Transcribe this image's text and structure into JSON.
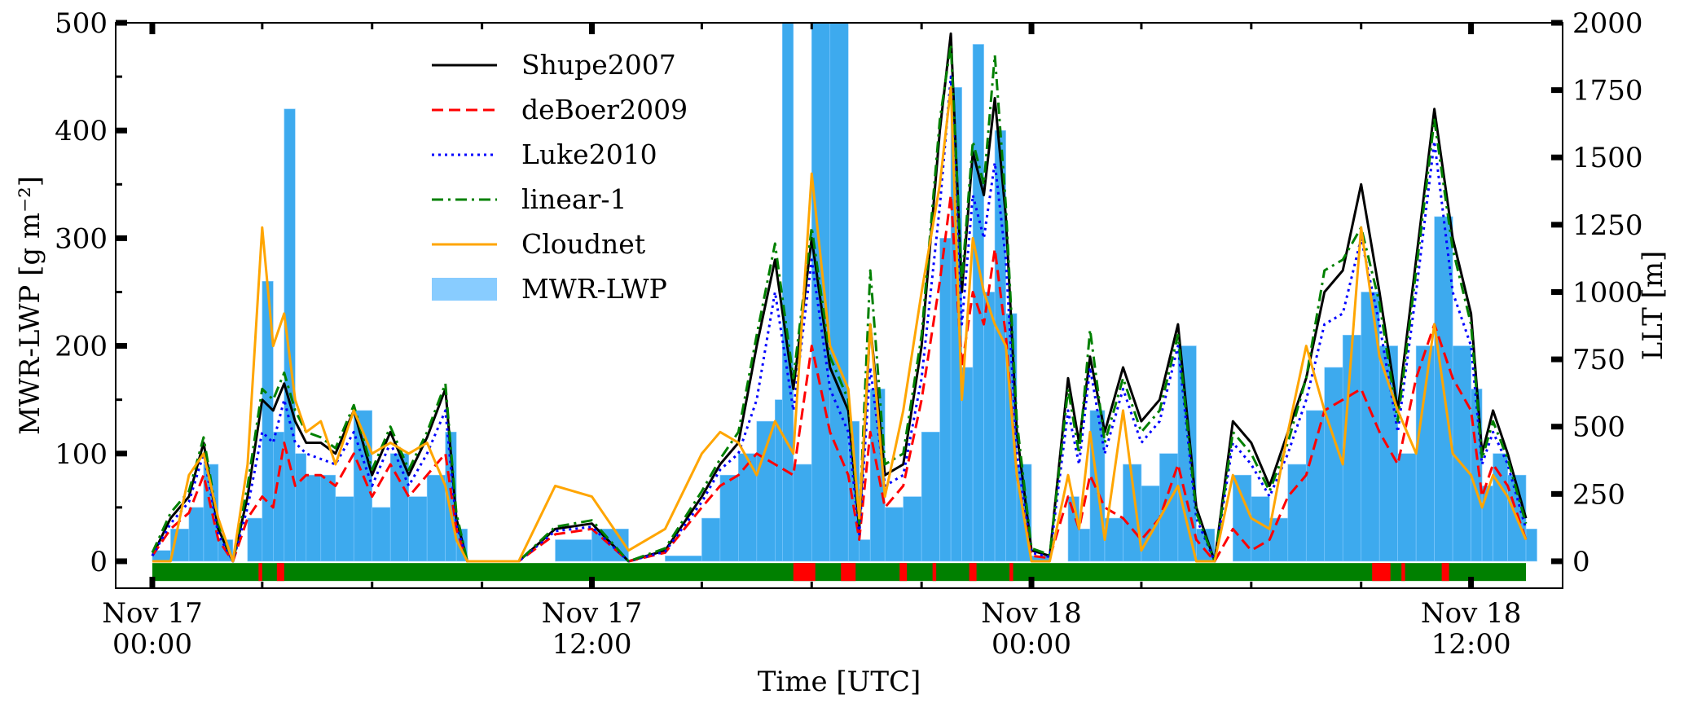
{
  "chart_data": {
    "type": "line",
    "title": "",
    "xlabel": "Time [UTC]",
    "ylabel": "MWR-LWP [g m⁻²]",
    "ylabel_right": "LLT [m]",
    "x_unit": "hours since Nov 17 00:00 UTC",
    "xlim": [
      -1.0,
      38.5
    ],
    "ylim": [
      -25,
      500
    ],
    "ylim_right": [
      -100,
      2000
    ],
    "x_ticks": [
      {
        "x": 0,
        "line1": "Nov 17",
        "line2": "00:00"
      },
      {
        "x": 12,
        "line1": "Nov 17",
        "line2": "12:00"
      },
      {
        "x": 24,
        "line1": "Nov 18",
        "line2": "00:00"
      },
      {
        "x": 36,
        "line1": "Nov 18",
        "line2": "12:00"
      }
    ],
    "y_ticks": [
      "0",
      "100",
      "200",
      "300",
      "400",
      "500"
    ],
    "y_tick_values": [
      0,
      100,
      200,
      300,
      400,
      500
    ],
    "y_right_ticks": [
      "0",
      "250",
      "500",
      "750",
      "1000",
      "1250",
      "1500",
      "1750",
      "2000"
    ],
    "y_right_tick_values": [
      0,
      250,
      500,
      750,
      1000,
      1250,
      1500,
      1750,
      2000
    ],
    "legend_position": "top-left",
    "grid": false,
    "series": [
      {
        "name": "Shupe2007",
        "color": "#000000",
        "style": "solid",
        "x": [
          0,
          0.5,
          1.0,
          1.4,
          1.8,
          2.2,
          2.6,
          3.0,
          3.3,
          3.6,
          3.9,
          4.2,
          4.6,
          5.0,
          5.5,
          6.0,
          6.5,
          7.0,
          7.5,
          8.0,
          8.3,
          8.6,
          9.0,
          9.5,
          10,
          11,
          12,
          13,
          14,
          15,
          15.5,
          16,
          16.5,
          17,
          17.5,
          18,
          18.5,
          19,
          19.3,
          19.6,
          20,
          20.5,
          21,
          21.5,
          21.8,
          22.1,
          22.4,
          22.7,
          23,
          23.3,
          23.6,
          24,
          24.5,
          25,
          25.3,
          25.6,
          26,
          26.5,
          27,
          27.5,
          28,
          28.5,
          29,
          29.5,
          30,
          30.5,
          31,
          31.5,
          32,
          32.5,
          33,
          33.5,
          34,
          34.5,
          35,
          35.5,
          36,
          36.3,
          36.6,
          37,
          37.5
        ],
        "values": [
          5,
          40,
          60,
          110,
          30,
          0,
          60,
          150,
          140,
          165,
          130,
          110,
          110,
          100,
          140,
          80,
          120,
          80,
          115,
          160,
          40,
          0,
          0,
          0,
          0,
          30,
          35,
          0,
          10,
          60,
          90,
          110,
          200,
          280,
          160,
          300,
          180,
          140,
          30,
          220,
          80,
          90,
          200,
          400,
          490,
          250,
          380,
          340,
          430,
          320,
          120,
          10,
          5,
          170,
          110,
          190,
          120,
          180,
          130,
          150,
          220,
          50,
          0,
          130,
          110,
          70,
          120,
          170,
          250,
          270,
          350,
          250,
          140,
          280,
          420,
          300,
          230,
          100,
          140,
          100,
          40
        ]
      },
      {
        "name": "deBoer2009",
        "color": "#ff0000",
        "style": "dashed",
        "x": [
          0,
          0.5,
          1.0,
          1.4,
          1.8,
          2.2,
          2.6,
          3.0,
          3.3,
          3.6,
          3.9,
          4.2,
          4.6,
          5.0,
          5.5,
          6.0,
          6.5,
          7.0,
          7.5,
          8.0,
          8.3,
          8.6,
          9.0,
          9.5,
          10,
          11,
          12,
          13,
          14,
          15,
          15.5,
          16,
          16.5,
          17,
          17.5,
          18,
          18.5,
          19,
          19.3,
          19.6,
          20,
          20.5,
          21,
          21.5,
          21.8,
          22.1,
          22.4,
          22.7,
          23,
          23.3,
          23.6,
          24,
          24.5,
          25,
          25.3,
          25.6,
          26,
          26.5,
          27,
          27.5,
          28,
          28.5,
          29,
          29.5,
          30,
          30.5,
          31,
          31.5,
          32,
          32.5,
          33,
          33.5,
          34,
          34.5,
          35,
          35.5,
          36,
          36.3,
          36.6,
          37,
          37.5
        ],
        "values": [
          5,
          30,
          45,
          80,
          20,
          0,
          40,
          60,
          50,
          110,
          70,
          80,
          80,
          70,
          100,
          60,
          90,
          60,
          80,
          100,
          30,
          0,
          0,
          0,
          0,
          25,
          30,
          0,
          8,
          50,
          70,
          80,
          100,
          90,
          80,
          200,
          120,
          80,
          20,
          120,
          50,
          70,
          150,
          260,
          340,
          180,
          250,
          220,
          290,
          210,
          80,
          5,
          3,
          60,
          30,
          80,
          50,
          40,
          20,
          40,
          90,
          20,
          0,
          30,
          10,
          20,
          60,
          80,
          140,
          150,
          160,
          120,
          90,
          170,
          220,
          170,
          140,
          60,
          90,
          70,
          20
        ]
      },
      {
        "name": "Luke2010",
        "color": "#0000ff",
        "style": "dotted",
        "x": [
          0,
          0.5,
          1.0,
          1.4,
          1.8,
          2.2,
          2.6,
          3.0,
          3.3,
          3.6,
          3.9,
          4.2,
          4.6,
          5.0,
          5.5,
          6.0,
          6.5,
          7.0,
          7.5,
          8.0,
          8.3,
          8.6,
          9.0,
          9.5,
          10,
          11,
          12,
          13,
          14,
          15,
          15.5,
          16,
          16.5,
          17,
          17.5,
          18,
          18.5,
          19,
          19.3,
          19.6,
          20,
          20.5,
          21,
          21.5,
          21.8,
          22.1,
          22.4,
          22.7,
          23,
          23.3,
          23.6,
          24,
          24.5,
          25,
          25.3,
          25.6,
          26,
          26.5,
          27,
          27.5,
          28,
          28.5,
          29,
          29.5,
          30,
          30.5,
          31,
          31.5,
          32,
          32.5,
          33,
          33.5,
          34,
          34.5,
          35,
          35.5,
          36,
          36.3,
          36.6,
          37,
          37.5
        ],
        "values": [
          5,
          35,
          55,
          100,
          25,
          0,
          50,
          120,
          110,
          150,
          110,
          100,
          95,
          90,
          120,
          70,
          110,
          70,
          100,
          140,
          35,
          0,
          0,
          0,
          0,
          28,
          32,
          0,
          9,
          55,
          85,
          100,
          150,
          250,
          140,
          280,
          160,
          120,
          25,
          180,
          70,
          80,
          170,
          330,
          450,
          220,
          340,
          300,
          370,
          280,
          100,
          8,
          4,
          140,
          90,
          180,
          100,
          160,
          110,
          130,
          200,
          40,
          0,
          110,
          90,
          60,
          100,
          150,
          220,
          230,
          300,
          220,
          120,
          250,
          390,
          250,
          200,
          90,
          120,
          90,
          30
        ]
      },
      {
        "name": "linear-1",
        "color": "#008000",
        "style": "dashdot",
        "x": [
          0,
          0.5,
          1.0,
          1.4,
          1.8,
          2.2,
          2.6,
          3.0,
          3.3,
          3.6,
          3.9,
          4.2,
          4.6,
          5.0,
          5.5,
          6.0,
          6.5,
          7.0,
          7.5,
          8.0,
          8.3,
          8.6,
          9.0,
          9.5,
          10,
          11,
          12,
          13,
          14,
          15,
          15.5,
          16,
          16.5,
          17,
          17.5,
          18,
          18.5,
          19,
          19.3,
          19.6,
          20,
          20.5,
          21,
          21.5,
          21.8,
          22.1,
          22.4,
          22.7,
          23,
          23.3,
          23.6,
          24,
          24.5,
          25,
          25.3,
          25.6,
          26,
          26.5,
          27,
          27.5,
          28,
          28.5,
          29,
          29.5,
          30,
          30.5,
          31,
          31.5,
          32,
          32.5,
          33,
          33.5,
          34,
          34.5,
          35,
          35.5,
          36,
          36.3,
          36.6,
          37,
          37.5
        ],
        "values": [
          8,
          45,
          65,
          115,
          35,
          0,
          70,
          160,
          150,
          175,
          140,
          120,
          115,
          105,
          145,
          85,
          125,
          85,
          120,
          165,
          45,
          0,
          0,
          0,
          0,
          32,
          38,
          0,
          12,
          65,
          95,
          120,
          210,
          295,
          170,
          310,
          190,
          150,
          35,
          270,
          90,
          100,
          210,
          410,
          480,
          260,
          390,
          350,
          470,
          330,
          130,
          12,
          6,
          160,
          100,
          215,
          110,
          170,
          120,
          140,
          210,
          45,
          0,
          120,
          100,
          65,
          110,
          170,
          270,
          280,
          310,
          240,
          130,
          270,
          410,
          290,
          220,
          95,
          130,
          95,
          35
        ]
      },
      {
        "name": "Cloudnet",
        "color": "#ffa500",
        "style": "solid",
        "x": [
          0,
          0.5,
          1.0,
          1.4,
          1.8,
          2.2,
          2.6,
          3.0,
          3.3,
          3.6,
          3.9,
          4.2,
          4.6,
          5.0,
          5.5,
          6.0,
          6.5,
          7.0,
          7.5,
          8.0,
          8.3,
          8.6,
          9.0,
          9.5,
          10,
          11,
          12,
          13,
          14,
          15,
          15.5,
          16,
          16.5,
          17,
          17.5,
          18,
          18.5,
          19,
          19.3,
          19.6,
          20,
          20.5,
          21,
          21.5,
          21.8,
          22.1,
          22.4,
          22.7,
          23,
          23.3,
          23.6,
          24,
          24.5,
          25,
          25.3,
          25.6,
          26,
          26.5,
          27,
          27.5,
          28,
          28.5,
          29,
          29.5,
          30,
          30.5,
          31,
          31.5,
          32,
          32.5,
          33,
          33.5,
          34,
          34.5,
          35,
          35.5,
          36,
          36.3,
          36.6,
          37,
          37.5
        ],
        "values": [
          0,
          0,
          80,
          100,
          40,
          0,
          90,
          310,
          200,
          230,
          150,
          120,
          130,
          90,
          140,
          100,
          110,
          100,
          110,
          70,
          20,
          0,
          0,
          0,
          0,
          70,
          60,
          10,
          30,
          100,
          120,
          110,
          80,
          130,
          100,
          360,
          200,
          160,
          40,
          220,
          60,
          140,
          250,
          350,
          440,
          150,
          300,
          250,
          220,
          200,
          80,
          0,
          0,
          80,
          30,
          120,
          20,
          140,
          10,
          40,
          70,
          0,
          0,
          80,
          40,
          30,
          120,
          200,
          140,
          90,
          310,
          190,
          140,
          100,
          220,
          100,
          80,
          50,
          80,
          60,
          20
        ]
      }
    ],
    "bar_series": {
      "name": "MWR-LWP",
      "color": "#88ccff",
      "fill_color": "#3daaee",
      "x": [
        0,
        0.5,
        1.0,
        1.4,
        1.8,
        2.2,
        2.6,
        3.0,
        3.3,
        3.6,
        3.9,
        4.2,
        4.6,
        5.0,
        5.5,
        6.0,
        6.5,
        7.0,
        7.5,
        8.0,
        8.3,
        8.6,
        9.0,
        9.5,
        10,
        11,
        12,
        13,
        14,
        15,
        15.5,
        16,
        16.5,
        17,
        17.2,
        17.5,
        18,
        18.5,
        19,
        19.3,
        19.6,
        20,
        20.5,
        21,
        21.5,
        21.8,
        22.1,
        22.4,
        22.7,
        23,
        23.3,
        23.6,
        24,
        24.5,
        25,
        25.3,
        25.6,
        26,
        26.5,
        27,
        27.5,
        28,
        28.5,
        29,
        29.5,
        30,
        30.5,
        31,
        31.5,
        32,
        32.5,
        33,
        33.5,
        34,
        34.5,
        35,
        35.5,
        36,
        36.3,
        36.6,
        37,
        37.5
      ],
      "values": [
        10,
        30,
        50,
        90,
        20,
        0,
        40,
        260,
        120,
        420,
        100,
        80,
        80,
        60,
        140,
        50,
        100,
        60,
        80,
        120,
        30,
        0,
        0,
        0,
        0,
        20,
        30,
        0,
        5,
        40,
        80,
        100,
        130,
        150,
        500,
        90,
        500,
        500,
        130,
        20,
        160,
        50,
        60,
        120,
        300,
        440,
        180,
        480,
        250,
        400,
        230,
        90,
        5,
        0,
        60,
        30,
        140,
        40,
        90,
        70,
        100,
        200,
        30,
        0,
        80,
        60,
        40,
        90,
        140,
        180,
        210,
        250,
        200,
        100,
        200,
        320,
        200,
        160,
        70,
        100,
        80,
        30
      ]
    },
    "flag_bar": {
      "colors": {
        "normal": "#008000",
        "flag": "#ff0000"
      },
      "flag_intervals": [
        [
          2.9,
          3.0
        ],
        [
          3.4,
          3.6
        ],
        [
          17.5,
          18.1
        ],
        [
          18.8,
          19.2
        ],
        [
          20.4,
          20.6
        ],
        [
          21.3,
          21.4
        ],
        [
          22.3,
          22.5
        ],
        [
          23.4,
          23.5
        ],
        [
          33.3,
          33.8
        ],
        [
          34.1,
          34.2
        ],
        [
          35.2,
          35.4
        ]
      ]
    }
  }
}
